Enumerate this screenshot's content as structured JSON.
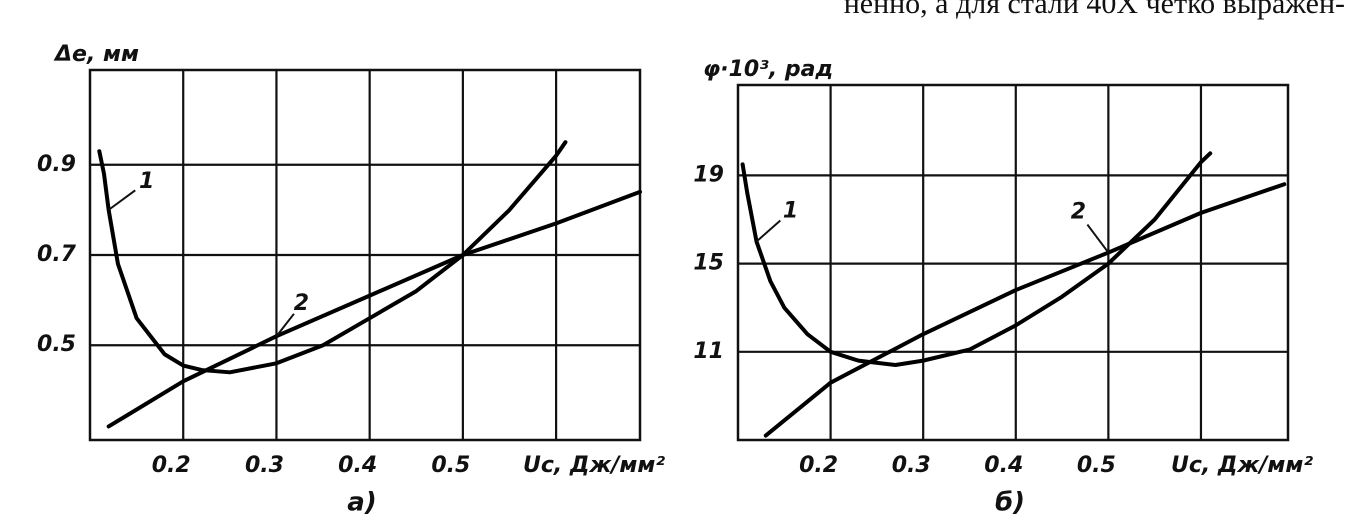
{
  "header_fragment": "ненно, а для стали 40Х четко выражен-",
  "chart_data": [
    {
      "type": "line",
      "y_label": "Δe, мм",
      "x_label": "Uc, Дж/мм²",
      "caption": "а)",
      "xlim": [
        0.1,
        0.69
      ],
      "ylim": [
        0.29,
        1.11
      ],
      "xticks": [
        0.2,
        0.3,
        0.4,
        0.5
      ],
      "yticks": [
        0.5,
        0.7,
        0.9
      ],
      "xgrid": [
        0.2,
        0.3,
        0.4,
        0.5,
        0.6
      ],
      "ygrid": [
        0.5,
        0.7,
        0.9
      ],
      "series": [
        {
          "name": "1",
          "color": "#000000",
          "x": [
            0.11,
            0.115,
            0.12,
            0.13,
            0.15,
            0.18,
            0.2,
            0.22,
            0.25,
            0.3,
            0.35,
            0.4,
            0.45,
            0.5,
            0.55,
            0.6,
            0.61
          ],
          "values": [
            0.93,
            0.88,
            0.8,
            0.68,
            0.56,
            0.48,
            0.455,
            0.445,
            0.44,
            0.46,
            0.5,
            0.56,
            0.62,
            0.7,
            0.8,
            0.92,
            0.95
          ]
        },
        {
          "name": "2",
          "color": "#000000",
          "x": [
            0.12,
            0.2,
            0.3,
            0.4,
            0.5,
            0.6,
            0.69
          ],
          "values": [
            0.32,
            0.42,
            0.52,
            0.61,
            0.7,
            0.77,
            0.84
          ]
        }
      ]
    },
    {
      "type": "line",
      "y_label": "φ·10³, рад",
      "x_label": "Uc, Дж/мм²",
      "caption": "б)",
      "xlim": [
        0.1,
        0.694
      ],
      "ylim": [
        7,
        23.1
      ],
      "xticks": [
        0.2,
        0.3,
        0.4,
        0.5
      ],
      "yticks": [
        11,
        15,
        19
      ],
      "xgrid": [
        0.2,
        0.3,
        0.4,
        0.5,
        0.6
      ],
      "ygrid": [
        11,
        15,
        19
      ],
      "series": [
        {
          "name": "1",
          "color": "#000000",
          "x": [
            0.105,
            0.11,
            0.12,
            0.135,
            0.15,
            0.175,
            0.2,
            0.23,
            0.27,
            0.3,
            0.35,
            0.4,
            0.45,
            0.5,
            0.55,
            0.6,
            0.61
          ],
          "values": [
            19.5,
            18.2,
            16,
            14.2,
            13,
            11.8,
            11,
            10.6,
            10.4,
            10.6,
            11.1,
            12.2,
            13.5,
            15,
            17,
            19.6,
            20
          ]
        },
        {
          "name": "2",
          "color": "#000000",
          "x": [
            0.13,
            0.2,
            0.3,
            0.4,
            0.5,
            0.6,
            0.69
          ],
          "values": [
            7.2,
            9.6,
            11.8,
            13.8,
            15.5,
            17.3,
            18.6
          ]
        }
      ]
    }
  ]
}
